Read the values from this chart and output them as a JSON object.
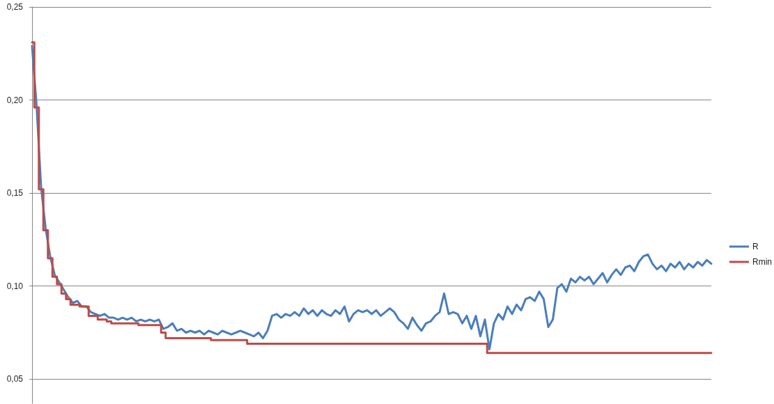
{
  "chart_data": {
    "type": "line",
    "categories": [
      null,
      null,
      null,
      null,
      null,
      null,
      null,
      null,
      null,
      null,
      null,
      null,
      null,
      null,
      null,
      null,
      null,
      null,
      null,
      null,
      null,
      null,
      null,
      null,
      null,
      null,
      null,
      null,
      null,
      null,
      null,
      null,
      null,
      null,
      null,
      null,
      null,
      null,
      null,
      null,
      null,
      null,
      null,
      null,
      null,
      null,
      null,
      null,
      null,
      null,
      null,
      null,
      null,
      null,
      null,
      null,
      null,
      null,
      null,
      null,
      null,
      null,
      null,
      null,
      null,
      null,
      null,
      null,
      null,
      null,
      null,
      null,
      null,
      null,
      null,
      null,
      null,
      null,
      null,
      null,
      null,
      null,
      null,
      null,
      null,
      null,
      null,
      null,
      null,
      null,
      null,
      null,
      null,
      null,
      null,
      null,
      null,
      null,
      null,
      null,
      null,
      null,
      null,
      null,
      null,
      null,
      null,
      null,
      null,
      null,
      null,
      null,
      null,
      null,
      null,
      null,
      null,
      null,
      null,
      null,
      null,
      null,
      null,
      null,
      null,
      null,
      null,
      null,
      null,
      null,
      null,
      null,
      null,
      null,
      null,
      null,
      null,
      null,
      null,
      null,
      null,
      null,
      null,
      null,
      null,
      null,
      null,
      null,
      null,
      null,
      null
    ],
    "series": [
      {
        "name": "R",
        "type": "line",
        "color": "#4a7ebb",
        "values": [
          0.229,
          0.197,
          0.153,
          0.131,
          0.116,
          0.106,
          0.102,
          0.098,
          0.094,
          0.091,
          0.092,
          0.089,
          0.089,
          0.086,
          0.085,
          0.084,
          0.085,
          0.083,
          0.083,
          0.082,
          0.083,
          0.082,
          0.083,
          0.081,
          0.082,
          0.081,
          0.082,
          0.081,
          0.082,
          0.077,
          0.078,
          0.08,
          0.076,
          0.077,
          0.075,
          0.076,
          0.075,
          0.076,
          0.074,
          0.076,
          0.075,
          0.074,
          0.076,
          0.075,
          0.074,
          0.075,
          0.076,
          0.075,
          0.074,
          0.073,
          0.075,
          0.072,
          0.076,
          0.084,
          0.085,
          0.083,
          0.085,
          0.084,
          0.086,
          0.084,
          0.088,
          0.085,
          0.087,
          0.084,
          0.087,
          0.085,
          0.084,
          0.087,
          0.085,
          0.089,
          0.081,
          0.085,
          0.087,
          0.086,
          0.087,
          0.085,
          0.087,
          0.084,
          0.086,
          0.088,
          0.086,
          0.082,
          0.08,
          0.077,
          0.083,
          0.079,
          0.076,
          0.08,
          0.081,
          0.084,
          0.086,
          0.096,
          0.085,
          0.086,
          0.085,
          0.08,
          0.084,
          0.077,
          0.084,
          0.073,
          0.082,
          0.066,
          0.08,
          0.085,
          0.082,
          0.089,
          0.085,
          0.09,
          0.087,
          0.093,
          0.094,
          0.092,
          0.097,
          0.093,
          0.078,
          0.082,
          0.099,
          0.101,
          0.097,
          0.104,
          0.102,
          0.105,
          0.103,
          0.105,
          0.101,
          0.104,
          0.107,
          0.102,
          0.106,
          0.109,
          0.106,
          0.11,
          0.111,
          0.108,
          0.113,
          0.116,
          0.117,
          0.112,
          0.109,
          0.111,
          0.108,
          0.112,
          0.11,
          0.113,
          0.109,
          0.112,
          0.11,
          0.113,
          0.111,
          0.114,
          0.112
        ]
      },
      {
        "name": "Rmin",
        "type": "step",
        "color": "#be4b48",
        "values": [
          0.231,
          0.196,
          0.152,
          0.13,
          0.115,
          0.105,
          0.101,
          0.096,
          0.093,
          0.09,
          0.09,
          0.089,
          0.089,
          0.084,
          0.084,
          0.082,
          0.082,
          0.081,
          0.08,
          0.08,
          0.08,
          0.08,
          0.08,
          0.08,
          0.079,
          0.079,
          0.079,
          0.079,
          0.079,
          0.075,
          0.072,
          0.072,
          0.072,
          0.072,
          0.072,
          0.072,
          0.072,
          0.072,
          0.072,
          0.072,
          0.071,
          0.071,
          0.071,
          0.071,
          0.071,
          0.071,
          0.071,
          0.071,
          0.069,
          0.069,
          0.069,
          0.069,
          0.069,
          0.069,
          0.069,
          0.069,
          0.069,
          0.069,
          0.069,
          0.069,
          0.069,
          0.069,
          0.069,
          0.069,
          0.069,
          0.069,
          0.069,
          0.069,
          0.069,
          0.069,
          0.069,
          0.069,
          0.069,
          0.069,
          0.069,
          0.069,
          0.069,
          0.069,
          0.069,
          0.069,
          0.069,
          0.069,
          0.069,
          0.069,
          0.069,
          0.069,
          0.069,
          0.069,
          0.069,
          0.069,
          0.069,
          0.069,
          0.069,
          0.069,
          0.069,
          0.069,
          0.069,
          0.069,
          0.069,
          0.069,
          0.069,
          0.064,
          0.064,
          0.064,
          0.064,
          0.064,
          0.064,
          0.064,
          0.064,
          0.064,
          0.064,
          0.064,
          0.064,
          0.064,
          0.064,
          0.064,
          0.064,
          0.064,
          0.064,
          0.064,
          0.064,
          0.064,
          0.064,
          0.064,
          0.064,
          0.064,
          0.064,
          0.064,
          0.064,
          0.064,
          0.064,
          0.064,
          0.064,
          0.064,
          0.064,
          0.064,
          0.064,
          0.064,
          0.064,
          0.064,
          0.064,
          0.064,
          0.064,
          0.064,
          0.064,
          0.064,
          0.064,
          0.064,
          0.064,
          0.064,
          0.064
        ]
      }
    ],
    "ylim": [
      0.037,
      0.25
    ],
    "yticks": [
      {
        "value": 0.05,
        "label": "0,05"
      },
      {
        "value": 0.1,
        "label": "0,10"
      },
      {
        "value": 0.15,
        "label": "0,15"
      },
      {
        "value": 0.2,
        "label": "0,20"
      },
      {
        "value": 0.25,
        "label": "0,25"
      }
    ],
    "grid": "y",
    "legend": "right",
    "tick_labels": "y"
  }
}
